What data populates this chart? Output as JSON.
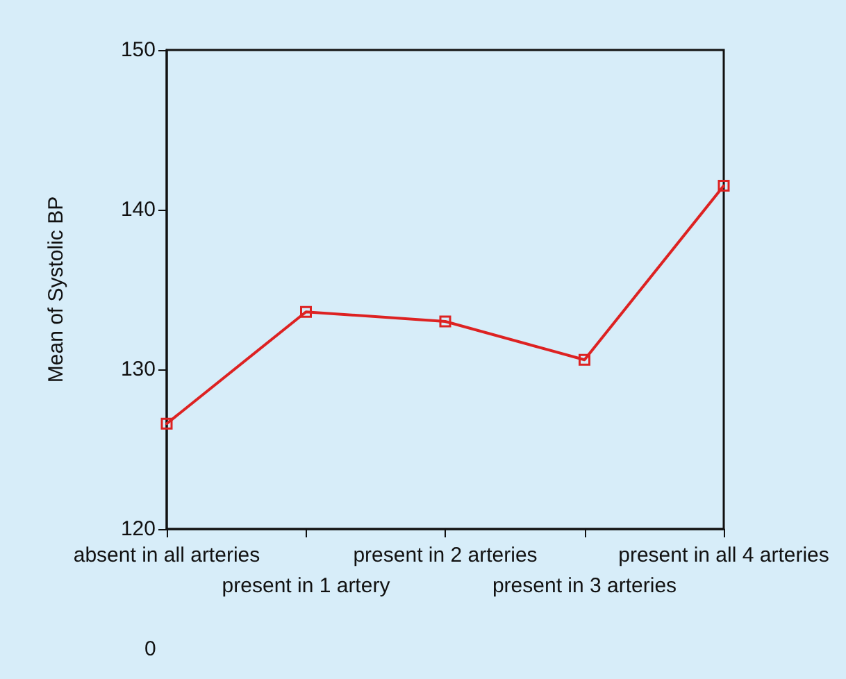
{
  "chart_data": {
    "type": "line",
    "ylabel": "Mean of Systolic BP",
    "categories": [
      "absent in all arteries",
      "present in 1 artery",
      "present in 2 arteries",
      "present in 3 arteries",
      "present in all 4 arteries"
    ],
    "series": [
      {
        "color": "#dd2222",
        "values": [
          126.6,
          133.6,
          133.0,
          130.6,
          141.5
        ]
      }
    ],
    "ylim": [
      120,
      150
    ],
    "yticks": [
      120,
      130,
      140,
      150
    ],
    "grid": false,
    "marker": "square",
    "line_style": "solid",
    "annotations": [
      "0"
    ]
  }
}
